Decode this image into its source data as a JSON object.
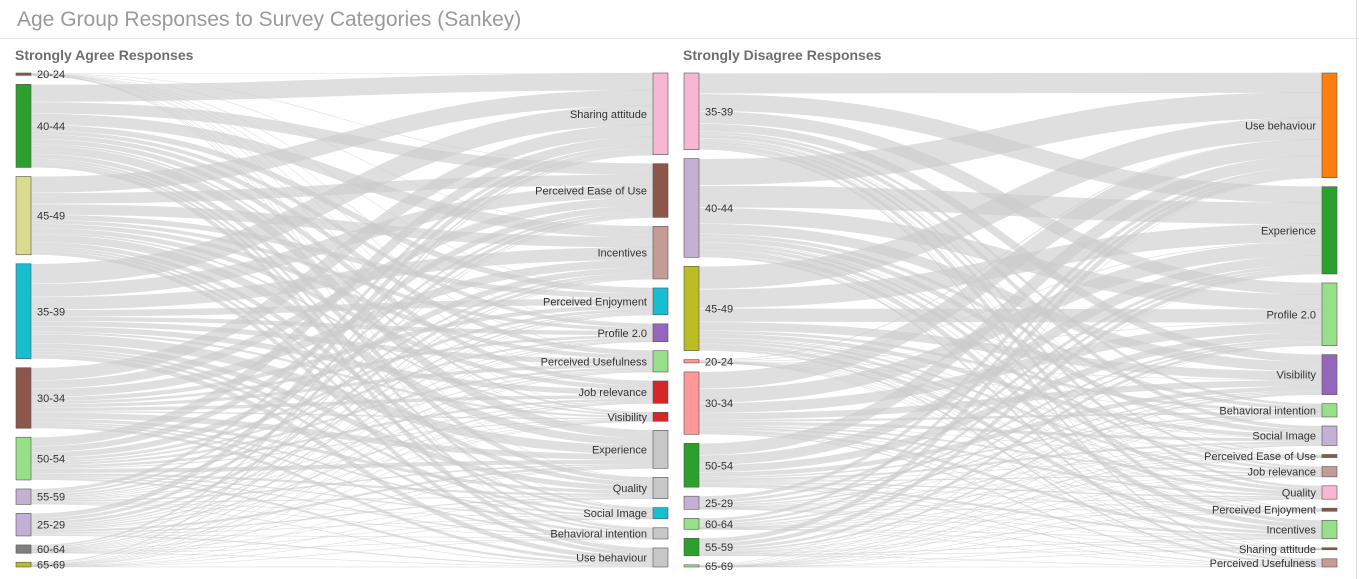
{
  "title": "Age Group Responses to Survey Categories (Sankey)",
  "colors": {
    "link": "#cccccc",
    "title": "#9a9a9a",
    "panel_title": "#6e6e6e"
  },
  "chart_data": [
    {
      "type": "sankey",
      "title": "Strongly Agree Responses",
      "sources": [
        {
          "name": "20-24",
          "value": 2,
          "color": "#8c564b"
        },
        {
          "name": "40-44",
          "value": 70,
          "color": "#2ca02c"
        },
        {
          "name": "45-49",
          "value": 66,
          "color": "#dbdb8d"
        },
        {
          "name": "35-39",
          "value": 80,
          "color": "#17becf"
        },
        {
          "name": "30-34",
          "value": 51,
          "color": "#8c564b"
        },
        {
          "name": "50-54",
          "value": 36,
          "color": "#98df8a"
        },
        {
          "name": "55-59",
          "value": 13,
          "color": "#c5b0d5"
        },
        {
          "name": "25-29",
          "value": 19,
          "color": "#c5b0d5"
        },
        {
          "name": "60-64",
          "value": 7,
          "color": "#7f7f7f"
        },
        {
          "name": "65-69",
          "value": 4,
          "color": "#bcbd22"
        }
      ],
      "targets": [
        {
          "name": "Sharing attitude",
          "value": 73,
          "color": "#f7b6d2"
        },
        {
          "name": "Perceived Ease of Use",
          "value": 48,
          "color": "#8c564b"
        },
        {
          "name": "Incentives",
          "value": 47,
          "color": "#c49c94"
        },
        {
          "name": "Perceived Enjoyment",
          "value": 24,
          "color": "#17becf"
        },
        {
          "name": "Profile 2.0",
          "value": 16,
          "color": "#9467bd"
        },
        {
          "name": "Perceived Usefulness",
          "value": 19,
          "color": "#98df8a"
        },
        {
          "name": "Job relevance",
          "value": 20,
          "color": "#d62728"
        },
        {
          "name": "Visibility",
          "value": 8,
          "color": "#d62728"
        },
        {
          "name": "Experience",
          "value": 34,
          "color": "#c7c7c7"
        },
        {
          "name": "Quality",
          "value": 19,
          "color": "#c7c7c7"
        },
        {
          "name": "Social Image",
          "value": 10,
          "color": "#17becf"
        },
        {
          "name": "Behavioral intention",
          "value": 10,
          "color": "#c7c7c7"
        },
        {
          "name": "Use behaviour",
          "value": 17,
          "color": "#c7c7c7"
        }
      ]
    },
    {
      "type": "sankey",
      "title": "Strongly Disagree Responses",
      "sources": [
        {
          "name": "35-39",
          "value": 70,
          "color": "#f7b6d2"
        },
        {
          "name": "40-44",
          "value": 90,
          "color": "#c5b0d5"
        },
        {
          "name": "45-49",
          "value": 77,
          "color": "#bcbd22"
        },
        {
          "name": "20-24",
          "value": 3,
          "color": "#ff9896"
        },
        {
          "name": "30-34",
          "value": 57,
          "color": "#ff9896"
        },
        {
          "name": "50-54",
          "value": 40,
          "color": "#2ca02c"
        },
        {
          "name": "25-29",
          "value": 12,
          "color": "#c5b0d5"
        },
        {
          "name": "60-64",
          "value": 10,
          "color": "#98df8a"
        },
        {
          "name": "55-59",
          "value": 16,
          "color": "#2ca02c"
        },
        {
          "name": "65-69",
          "value": 2,
          "color": "#98df8a"
        }
      ],
      "targets": [
        {
          "name": "Use behaviour",
          "value": 102,
          "color": "#ff7f0e"
        },
        {
          "name": "Experience",
          "value": 85,
          "color": "#2ca02c"
        },
        {
          "name": "Profile 2.0",
          "value": 61,
          "color": "#98df8a"
        },
        {
          "name": "Visibility",
          "value": 39,
          "color": "#9467bd"
        },
        {
          "name": "Behavioral intention",
          "value": 13,
          "color": "#98df8a"
        },
        {
          "name": "Social Image",
          "value": 19,
          "color": "#c5b0d5"
        },
        {
          "name": "Perceived Ease of Use",
          "value": 3,
          "color": "#8c564b"
        },
        {
          "name": "Job relevance",
          "value": 10,
          "color": "#c49c94"
        },
        {
          "name": "Quality",
          "value": 13,
          "color": "#f7b6d2"
        },
        {
          "name": "Perceived Enjoyment",
          "value": 3,
          "color": "#8c564b"
        },
        {
          "name": "Incentives",
          "value": 18,
          "color": "#98df8a"
        },
        {
          "name": "Sharing attitude",
          "value": 2,
          "color": "#8c564b"
        },
        {
          "name": "Perceived Usefulness",
          "value": 8,
          "color": "#c49c94"
        }
      ]
    }
  ]
}
